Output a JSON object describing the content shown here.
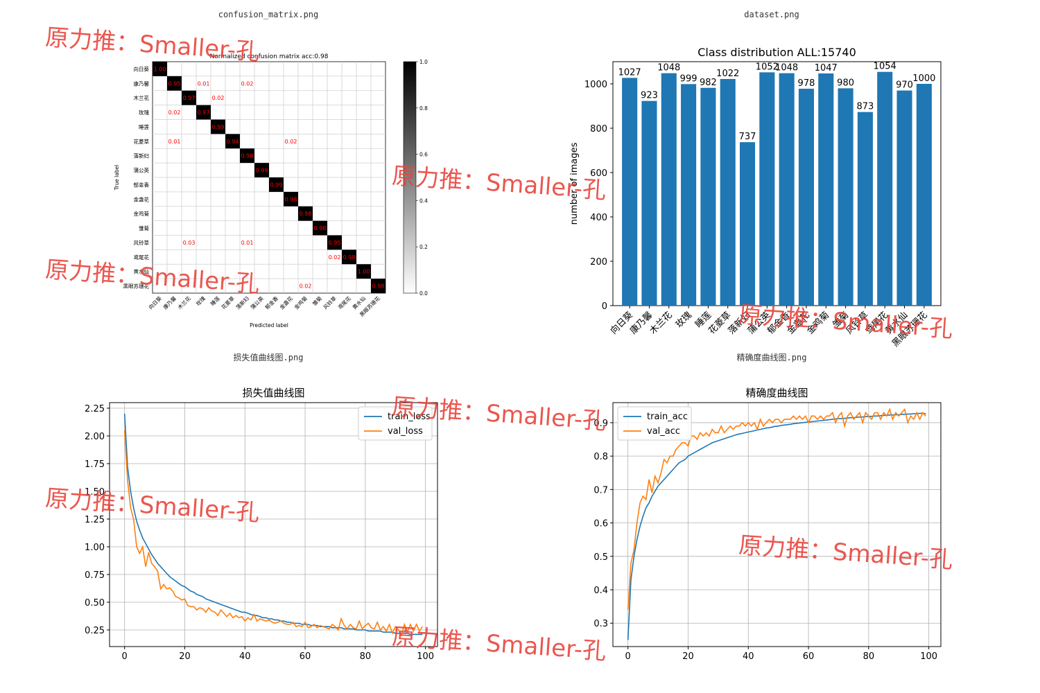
{
  "captions": {
    "confusion": "confusion_matrix.png",
    "dataset": "dataset.png",
    "loss": "损失值曲线图.png",
    "accuracy": "精确度曲线图.png"
  },
  "watermark": "原力推：Smaller-孔",
  "colors": {
    "bar": "#1f77b4",
    "train": "#1f77b4",
    "val": "#ff7f0e",
    "cm_text": "#ff0000",
    "watermark": "#e8453c"
  },
  "chart_data": [
    {
      "type": "heatmap",
      "title": "Normalized confusion matrix acc:0.98",
      "xlabel": "Predicted label",
      "ylabel": "True label",
      "labels": [
        "向日葵",
        "康乃馨",
        "木兰花",
        "玫瑰",
        "睡莲",
        "花菱草",
        "落新妇",
        "蒲公英",
        "郁金香",
        "金盏花",
        "金鸡菊",
        "雏菊",
        "风铃草",
        "鸢尾花",
        "黄水仙",
        "黑眼苏珊花"
      ],
      "diagonal": [
        "1.00",
        "0.95",
        "0.97",
        "0.97",
        "0.99",
        "0.94",
        "0.98",
        "0.99",
        "0.99",
        "0.98",
        "0.98",
        "0.98",
        "0.95",
        "0.98",
        "1.00",
        "0.98"
      ],
      "off_diagonal": [
        {
          "row": 1,
          "col": 3,
          "text": "0.01"
        },
        {
          "row": 1,
          "col": 6,
          "text": "0.02"
        },
        {
          "row": 2,
          "col": 4,
          "text": "0.02"
        },
        {
          "row": 3,
          "col": 1,
          "text": "0.02"
        },
        {
          "row": 5,
          "col": 1,
          "text": "0.01"
        },
        {
          "row": 5,
          "col": 9,
          "text": "0.02"
        },
        {
          "row": 12,
          "col": 2,
          "text": "0.03"
        },
        {
          "row": 12,
          "col": 6,
          "text": "0.01"
        },
        {
          "row": 13,
          "col": 12,
          "text": "0.02"
        },
        {
          "row": 15,
          "col": 10,
          "text": "0.02"
        }
      ],
      "colorbar_ticks": [
        "1.0",
        "0.8",
        "0.6",
        "0.4",
        "0.2",
        "0.0"
      ]
    },
    {
      "type": "bar",
      "title": "Class distribution ALL:15740",
      "ylabel": "number of images",
      "categories": [
        "向日葵",
        "康乃馨",
        "木兰花",
        "玫瑰",
        "睡莲",
        "花菱草",
        "落新妇",
        "蒲公英",
        "郁金香",
        "金盏花",
        "金鸡菊",
        "雏菊",
        "风铃草",
        "鸢尾花",
        "黄水仙",
        "黑眼苏珊花"
      ],
      "values": [
        1027,
        923,
        1048,
        999,
        982,
        1022,
        737,
        1052,
        1048,
        978,
        1047,
        980,
        873,
        1054,
        970,
        1000
      ],
      "ylim": [
        0,
        1100
      ],
      "yticks": [
        0,
        200,
        400,
        600,
        800,
        1000
      ]
    },
    {
      "type": "line",
      "title": "损失值曲线图",
      "legend": "top-right",
      "grid": true,
      "xlim": [
        -5,
        104
      ],
      "ylim": [
        0.1,
        2.3
      ],
      "xticks": [
        0,
        20,
        40,
        60,
        80,
        100
      ],
      "yticks": [
        0.25,
        0.5,
        0.75,
        1.0,
        1.25,
        1.5,
        1.75,
        2.0,
        2.25
      ],
      "ytick_labels": [
        "0.25",
        "0.50",
        "0.75",
        "1.00",
        "1.25",
        "1.50",
        "1.75",
        "2.00",
        "2.25"
      ],
      "series": [
        {
          "name": "train_loss",
          "x0": 0,
          "values": [
            2.2,
            1.72,
            1.5,
            1.35,
            1.23,
            1.15,
            1.08,
            1.03,
            0.98,
            0.93,
            0.89,
            0.85,
            0.82,
            0.79,
            0.76,
            0.73,
            0.71,
            0.69,
            0.67,
            0.65,
            0.64,
            0.62,
            0.6,
            0.59,
            0.57,
            0.56,
            0.55,
            0.53,
            0.52,
            0.51,
            0.5,
            0.49,
            0.48,
            0.47,
            0.46,
            0.45,
            0.44,
            0.43,
            0.42,
            0.41,
            0.41,
            0.4,
            0.39,
            0.38,
            0.38,
            0.37,
            0.36,
            0.36,
            0.35,
            0.35,
            0.34,
            0.34,
            0.33,
            0.33,
            0.32,
            0.32,
            0.31,
            0.31,
            0.31,
            0.3,
            0.3,
            0.3,
            0.29,
            0.29,
            0.29,
            0.28,
            0.28,
            0.28,
            0.28,
            0.27,
            0.27,
            0.27,
            0.27,
            0.26,
            0.26,
            0.26,
            0.26,
            0.25,
            0.25,
            0.25,
            0.25,
            0.24,
            0.24,
            0.24,
            0.24,
            0.24,
            0.23,
            0.23,
            0.23,
            0.23,
            0.22,
            0.22,
            0.22,
            0.22,
            0.22,
            0.21,
            0.21,
            0.21,
            0.21,
            0.21
          ]
        },
        {
          "name": "val_loss",
          "x0": 0,
          "values": [
            2.05,
            1.6,
            1.35,
            1.25,
            1.0,
            0.94,
            1.0,
            0.82,
            0.95,
            0.85,
            0.82,
            0.78,
            0.62,
            0.66,
            0.62,
            0.63,
            0.6,
            0.55,
            0.54,
            0.52,
            0.53,
            0.47,
            0.46,
            0.46,
            0.43,
            0.45,
            0.44,
            0.41,
            0.45,
            0.42,
            0.41,
            0.38,
            0.43,
            0.4,
            0.37,
            0.4,
            0.36,
            0.38,
            0.36,
            0.37,
            0.33,
            0.36,
            0.34,
            0.39,
            0.33,
            0.35,
            0.34,
            0.33,
            0.34,
            0.32,
            0.31,
            0.32,
            0.33,
            0.31,
            0.3,
            0.3,
            0.32,
            0.28,
            0.29,
            0.28,
            0.32,
            0.27,
            0.28,
            0.3,
            0.27,
            0.29,
            0.28,
            0.27,
            0.26,
            0.3,
            0.28,
            0.25,
            0.35,
            0.29,
            0.26,
            0.3,
            0.27,
            0.26,
            0.33,
            0.26,
            0.29,
            0.31,
            0.27,
            0.26,
            0.32,
            0.25,
            0.28,
            0.24,
            0.3,
            0.22,
            0.28,
            0.25,
            0.2,
            0.3,
            0.23,
            0.3,
            0.24,
            0.3,
            0.24,
            0.28
          ]
        }
      ]
    },
    {
      "type": "line",
      "title": "精确度曲线图",
      "legend": "top-left",
      "grid": true,
      "xlim": [
        -5,
        104
      ],
      "ylim": [
        0.23,
        0.96
      ],
      "xticks": [
        0,
        20,
        40,
        60,
        80,
        100
      ],
      "yticks": [
        0.3,
        0.4,
        0.5,
        0.6,
        0.7,
        0.8,
        0.9
      ],
      "ytick_labels": [
        "0.3",
        "0.4",
        "0.5",
        "0.6",
        "0.7",
        "0.8",
        "0.9"
      ],
      "series": [
        {
          "name": "train_acc",
          "x0": 0,
          "values": [
            0.25,
            0.43,
            0.5,
            0.55,
            0.59,
            0.62,
            0.645,
            0.66,
            0.68,
            0.695,
            0.71,
            0.72,
            0.73,
            0.74,
            0.75,
            0.76,
            0.77,
            0.78,
            0.785,
            0.79,
            0.8,
            0.805,
            0.81,
            0.815,
            0.82,
            0.825,
            0.83,
            0.835,
            0.84,
            0.843,
            0.846,
            0.849,
            0.852,
            0.855,
            0.858,
            0.861,
            0.864,
            0.866,
            0.868,
            0.87,
            0.872,
            0.874,
            0.876,
            0.878,
            0.88,
            0.882,
            0.884,
            0.885,
            0.887,
            0.889,
            0.89,
            0.892,
            0.893,
            0.894,
            0.895,
            0.897,
            0.898,
            0.899,
            0.9,
            0.901,
            0.902,
            0.903,
            0.904,
            0.905,
            0.906,
            0.907,
            0.908,
            0.909,
            0.91,
            0.911,
            0.912,
            0.912,
            0.913,
            0.914,
            0.915,
            0.915,
            0.916,
            0.917,
            0.917,
            0.918,
            0.919,
            0.919,
            0.92,
            0.92,
            0.921,
            0.922,
            0.922,
            0.923,
            0.923,
            0.924,
            0.924,
            0.925,
            0.925,
            0.926,
            0.926,
            0.927,
            0.927,
            0.928,
            0.928,
            0.927
          ]
        },
        {
          "name": "val_acc",
          "x0": 0,
          "values": [
            0.34,
            0.48,
            0.52,
            0.6,
            0.66,
            0.68,
            0.67,
            0.73,
            0.69,
            0.74,
            0.72,
            0.75,
            0.79,
            0.78,
            0.8,
            0.8,
            0.82,
            0.83,
            0.84,
            0.84,
            0.83,
            0.86,
            0.86,
            0.85,
            0.87,
            0.86,
            0.87,
            0.86,
            0.88,
            0.87,
            0.87,
            0.89,
            0.87,
            0.88,
            0.89,
            0.88,
            0.89,
            0.89,
            0.9,
            0.89,
            0.9,
            0.89,
            0.9,
            0.88,
            0.91,
            0.89,
            0.9,
            0.91,
            0.9,
            0.91,
            0.91,
            0.9,
            0.91,
            0.91,
            0.91,
            0.92,
            0.91,
            0.92,
            0.91,
            0.92,
            0.9,
            0.92,
            0.92,
            0.91,
            0.92,
            0.91,
            0.92,
            0.92,
            0.93,
            0.9,
            0.92,
            0.93,
            0.89,
            0.92,
            0.93,
            0.91,
            0.92,
            0.93,
            0.9,
            0.93,
            0.92,
            0.91,
            0.93,
            0.93,
            0.91,
            0.93,
            0.92,
            0.94,
            0.91,
            0.93,
            0.92,
            0.93,
            0.94,
            0.9,
            0.92,
            0.91,
            0.93,
            0.91,
            0.93,
            0.92
          ]
        }
      ]
    }
  ]
}
